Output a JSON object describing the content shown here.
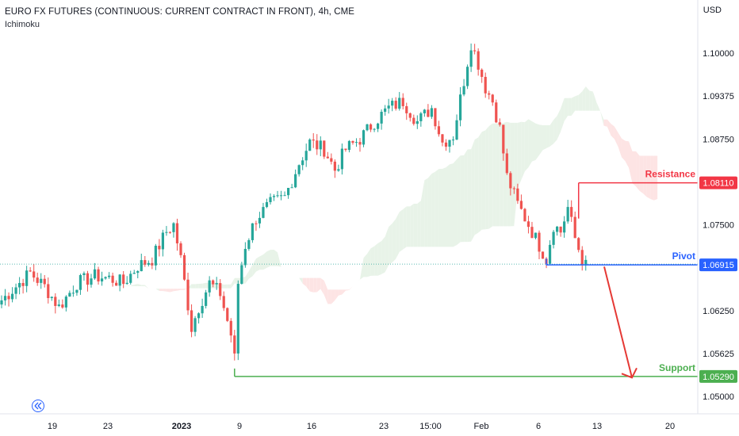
{
  "header": {
    "title": "EURO FX FUTURES (CONTINUOUS: CURRENT CONTRACT IN FRONT), 4h, CME",
    "indicator": "Ichimoku"
  },
  "axis": {
    "currency": "USD"
  },
  "colors": {
    "up": "#26a69a",
    "down": "#ef5350",
    "resistance": "#f23645",
    "pivot": "#2962ff",
    "support": "#4caf50",
    "cloud_bull": "#e8f3e8",
    "cloud_bear": "#fde4e4"
  },
  "chart_data": {
    "type": "candlestick",
    "y_ticks": [
      "1.10000",
      "1.09375",
      "1.08750",
      "1.07500",
      "1.06250",
      "1.05625",
      "1.05000"
    ],
    "y_range": [
      1.0475,
      1.1035
    ],
    "x_ticks": [
      "19",
      "23",
      "2023",
      "9",
      "16",
      "23",
      "15:00",
      "Feb",
      "6",
      "13",
      "20"
    ],
    "levels": [
      {
        "label": "Resistance",
        "value": "1.08110"
      },
      {
        "label": "Pivot",
        "value": "1.06915"
      },
      {
        "label": "Support",
        "value": "1.05290"
      }
    ],
    "projection": {
      "from": 1.0689,
      "to": 1.054
    },
    "price_path_anchors": [
      [
        0,
        1.064
      ],
      [
        3,
        1.0655
      ],
      [
        8,
        1.068
      ],
      [
        12,
        1.066
      ],
      [
        16,
        1.063
      ],
      [
        21,
        1.0665
      ],
      [
        26,
        1.0675
      ],
      [
        30,
        1.0672
      ],
      [
        34,
        1.0665
      ],
      [
        38,
        1.069
      ],
      [
        42,
        1.07
      ],
      [
        46,
        1.074
      ],
      [
        48,
        1.075
      ],
      [
        50,
        1.07
      ],
      [
        53,
        1.06
      ],
      [
        55,
        1.063
      ],
      [
        58,
        1.0665
      ],
      [
        61,
        1.065
      ],
      [
        64,
        1.059
      ],
      [
        65,
        1.0555
      ],
      [
        66,
        1.0665
      ],
      [
        68,
        1.072
      ],
      [
        71,
        1.076
      ],
      [
        75,
        1.078
      ],
      [
        79,
        1.079
      ],
      [
        83,
        1.084
      ],
      [
        86,
        1.087
      ],
      [
        90,
        1.086
      ],
      [
        93,
        1.083
      ],
      [
        96,
        1.086
      ],
      [
        100,
        1.0875
      ],
      [
        104,
        1.09
      ],
      [
        108,
        1.092
      ],
      [
        112,
        1.093
      ],
      [
        116,
        1.09
      ],
      [
        120,
        1.092
      ],
      [
        123,
        1.087
      ],
      [
        126,
        1.088
      ],
      [
        129,
        1.096
      ],
      [
        131,
        1.1015
      ],
      [
        133,
        1.0985
      ],
      [
        135,
        1.095
      ],
      [
        137,
        1.093
      ],
      [
        139,
        1.089
      ],
      [
        141,
        1.082
      ],
      [
        144,
        1.078
      ],
      [
        147,
        1.075
      ],
      [
        150,
        1.072
      ],
      [
        152,
        1.07
      ],
      [
        154,
        1.075
      ],
      [
        156,
        1.074
      ],
      [
        158,
        1.0775
      ],
      [
        160,
        1.073
      ],
      [
        162,
        1.07
      ],
      [
        163,
        1.069
      ]
    ]
  }
}
